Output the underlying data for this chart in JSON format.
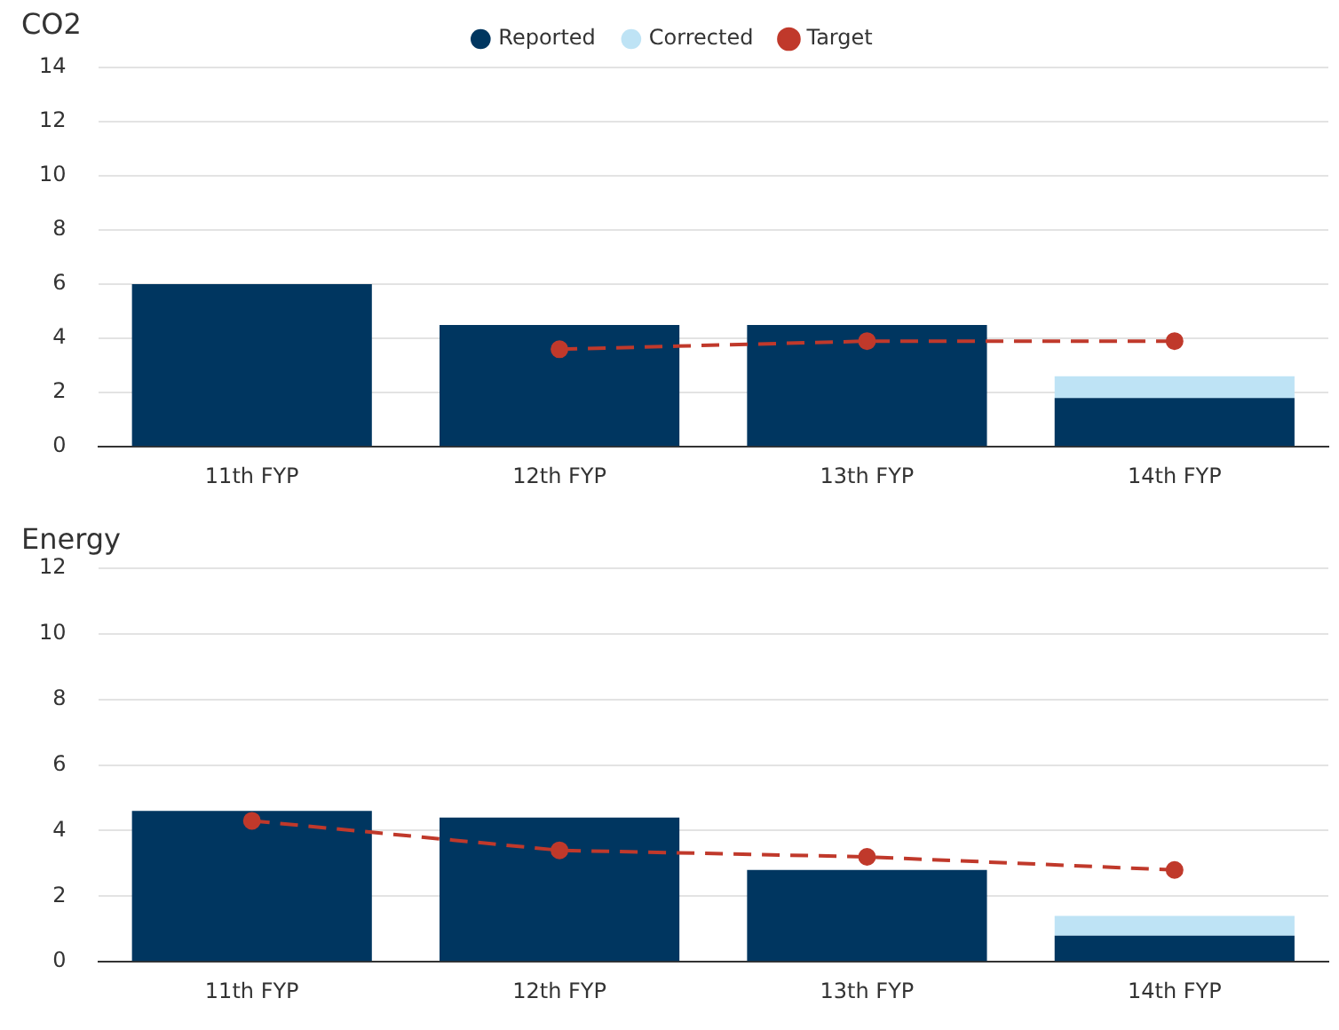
{
  "chart_data": [
    {
      "type": "bar",
      "title": "CO2",
      "stacked": true,
      "categories": [
        "11th FYP",
        "12th FYP",
        "13th FYP",
        "14th FYP"
      ],
      "ylim": [
        0,
        14
      ],
      "yticks": [
        0,
        2,
        4,
        6,
        8,
        10,
        12,
        14
      ],
      "grid": "y",
      "legend": "top",
      "series": [
        {
          "name": "Reported",
          "color": "#003660",
          "values": [
            6.0,
            4.5,
            4.5,
            1.8
          ]
        },
        {
          "name": "Corrected",
          "color": "#bee3f5",
          "values": [
            null,
            null,
            null,
            0.8
          ]
        },
        {
          "name": "Target",
          "type": "line",
          "color": "#c0392b",
          "marker": "circle",
          "line_style": "dashed",
          "values": [
            null,
            3.6,
            3.9,
            3.9
          ]
        }
      ]
    },
    {
      "type": "bar",
      "title": "Energy",
      "stacked": true,
      "categories": [
        "11th FYP",
        "12th FYP",
        "13th FYP",
        "14th FYP"
      ],
      "ylim": [
        0,
        12
      ],
      "yticks": [
        0,
        2,
        4,
        6,
        8,
        10,
        12
      ],
      "grid": "y",
      "legend": false,
      "series": [
        {
          "color": "#003660",
          "values": [
            4.6,
            4.4,
            2.8,
            0.8
          ]
        },
        {
          "color": "#bee3f5",
          "values": [
            null,
            null,
            null,
            0.6
          ]
        },
        {
          "type": "line",
          "color": "#c0392b",
          "marker": "circle",
          "line_style": "dashed",
          "values": [
            4.3,
            3.4,
            3.2,
            2.8
          ]
        }
      ]
    }
  ]
}
